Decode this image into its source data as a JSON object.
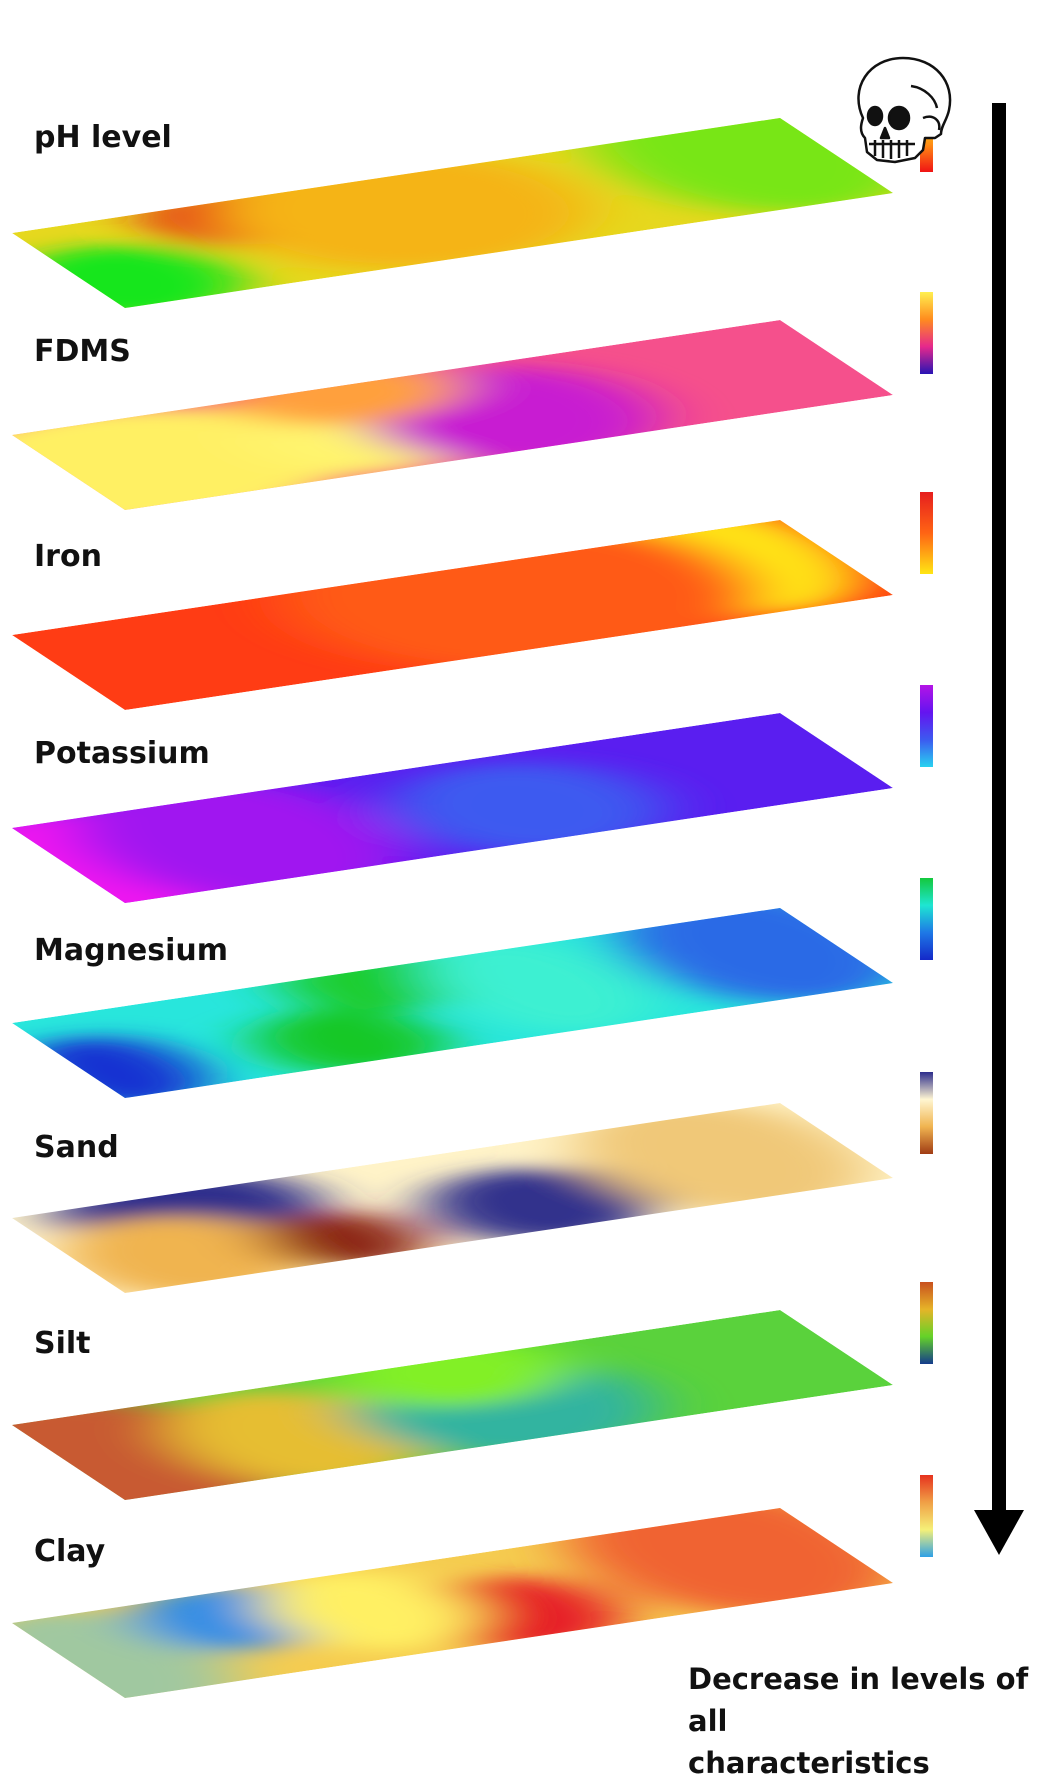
{
  "layers": [
    {
      "label": "pH level",
      "legend_colors": [
        "#1ec81e",
        "#f0e614",
        "#ff8c14",
        "#f01414"
      ],
      "base": "#e6d81e",
      "blobs": [
        {
          "u": 0.04,
          "v": 0.72,
          "rx": 0.14,
          "ry": 0.45,
          "color": "#14e61e"
        },
        {
          "u": 0.26,
          "v": 0.2,
          "rx": 0.1,
          "ry": 0.35,
          "color": "#e61414"
        },
        {
          "u": 0.45,
          "v": 0.4,
          "rx": 0.22,
          "ry": 0.7,
          "color": "#f5b414"
        },
        {
          "u": 0.92,
          "v": 0.3,
          "rx": 0.18,
          "ry": 0.8,
          "color": "#78e614"
        }
      ]
    },
    {
      "label": "FDMS",
      "legend_colors": [
        "#fff050",
        "#ff8c1e",
        "#e6288c",
        "#2814b4"
      ],
      "base": "#f5508c",
      "blobs": [
        {
          "u": 0.08,
          "v": 0.55,
          "rx": 0.26,
          "ry": 0.7,
          "color": "#fff064"
        },
        {
          "u": 0.36,
          "v": 0.55,
          "rx": 0.12,
          "ry": 0.5,
          "color": "#fff46e"
        },
        {
          "u": 0.56,
          "v": 0.72,
          "rx": 0.11,
          "ry": 0.4,
          "color": "#1e2ab4"
        },
        {
          "u": 0.56,
          "v": 0.6,
          "rx": 0.17,
          "ry": 0.6,
          "color": "#c81ed2"
        },
        {
          "u": 0.42,
          "v": 0.1,
          "rx": 0.14,
          "ry": 0.35,
          "color": "#ffa03c"
        }
      ]
    },
    {
      "label": "Iron",
      "legend_colors": [
        "#e61e1e",
        "#ff6414",
        "#ffe614"
      ],
      "base": "#ff3c14",
      "blobs": [
        {
          "u": 0.88,
          "v": 0.35,
          "rx": 0.14,
          "ry": 0.7,
          "color": "#ffe614"
        },
        {
          "u": 0.6,
          "v": 0.4,
          "rx": 0.28,
          "ry": 0.9,
          "color": "#ff5a14"
        }
      ]
    },
    {
      "label": "Potassium",
      "legend_colors": [
        "#b414e6",
        "#6414f0",
        "#3c5af0",
        "#28d2f0"
      ],
      "base": "#5a1ef0",
      "blobs": [
        {
          "u": 0.02,
          "v": 0.55,
          "rx": 0.14,
          "ry": 0.7,
          "color": "#f014f0"
        },
        {
          "u": 0.22,
          "v": 0.5,
          "rx": 0.18,
          "ry": 0.8,
          "color": "#a014f0"
        },
        {
          "u": 0.58,
          "v": 0.72,
          "rx": 0.1,
          "ry": 0.4,
          "color": "#3cc8f5"
        },
        {
          "u": 0.58,
          "v": 0.62,
          "rx": 0.16,
          "ry": 0.55,
          "color": "#3c5af0"
        }
      ]
    },
    {
      "label": "Magnesium",
      "legend_colors": [
        "#14c83c",
        "#1ee6d2",
        "#1e78e6",
        "#1428c8"
      ],
      "base": "#28e6dc",
      "blobs": [
        {
          "u": 0.03,
          "v": 0.7,
          "rx": 0.1,
          "ry": 0.45,
          "color": "#1432d2"
        },
        {
          "u": 0.33,
          "v": 0.75,
          "rx": 0.11,
          "ry": 0.4,
          "color": "#14c828"
        },
        {
          "u": 0.45,
          "v": 0.15,
          "rx": 0.11,
          "ry": 0.35,
          "color": "#1ecd2e"
        },
        {
          "u": 0.92,
          "v": 0.4,
          "rx": 0.16,
          "ry": 0.7,
          "color": "#2a6ae6"
        },
        {
          "u": 0.62,
          "v": 0.45,
          "rx": 0.12,
          "ry": 0.6,
          "color": "#3cf0d2"
        }
      ]
    },
    {
      "label": "Sand",
      "legend_colors": [
        "#2d2d8c",
        "#fff6d2",
        "#f0b450",
        "#a03c14"
      ],
      "base": "#fff3c8",
      "blobs": [
        {
          "u": 0.2,
          "v": 0.2,
          "rx": 0.16,
          "ry": 0.45,
          "color": "#2d2d8c"
        },
        {
          "u": 0.12,
          "v": 0.7,
          "rx": 0.14,
          "ry": 0.5,
          "color": "#f0b450"
        },
        {
          "u": 0.32,
          "v": 0.78,
          "rx": 0.09,
          "ry": 0.35,
          "color": "#8c2814"
        },
        {
          "u": 0.58,
          "v": 0.72,
          "rx": 0.13,
          "ry": 0.45,
          "color": "#32328c"
        },
        {
          "u": 0.85,
          "v": 0.5,
          "rx": 0.16,
          "ry": 0.7,
          "color": "#f0c878"
        }
      ]
    },
    {
      "label": "Silt",
      "legend_colors": [
        "#c8501e",
        "#e6b428",
        "#64d228",
        "#143c8c"
      ],
      "base": "#5ad23c",
      "blobs": [
        {
          "u": 0.05,
          "v": 0.55,
          "rx": 0.18,
          "ry": 0.8,
          "color": "#c85a32"
        },
        {
          "u": 0.28,
          "v": 0.6,
          "rx": 0.14,
          "ry": 0.6,
          "color": "#e6be32"
        },
        {
          "u": 0.55,
          "v": 0.72,
          "rx": 0.12,
          "ry": 0.45,
          "color": "#14287a"
        },
        {
          "u": 0.55,
          "v": 0.6,
          "rx": 0.18,
          "ry": 0.6,
          "color": "#32b4a0"
        },
        {
          "u": 0.55,
          "v": 0.15,
          "rx": 0.14,
          "ry": 0.4,
          "color": "#82f028"
        }
      ]
    },
    {
      "label": "Clay",
      "legend_colors": [
        "#e6321e",
        "#f0a046",
        "#f5f078",
        "#2ea0e6"
      ],
      "base": "#f5cc50",
      "blobs": [
        {
          "u": 0.03,
          "v": 0.6,
          "rx": 0.14,
          "ry": 0.7,
          "color": "#a0c8a0"
        },
        {
          "u": 0.24,
          "v": 0.3,
          "rx": 0.11,
          "ry": 0.4,
          "color": "#2d8ce6"
        },
        {
          "u": 0.55,
          "v": 0.72,
          "rx": 0.12,
          "ry": 0.45,
          "color": "#e61e28"
        },
        {
          "u": 0.88,
          "v": 0.4,
          "rx": 0.18,
          "ry": 0.8,
          "color": "#f06432"
        },
        {
          "u": 0.4,
          "v": 0.45,
          "rx": 0.12,
          "ry": 0.5,
          "color": "#fff064"
        }
      ]
    }
  ],
  "arrow": {
    "caption_line1": "Decrease in levels of all",
    "caption_line2": "characteristics"
  },
  "icon": "skull-icon"
}
